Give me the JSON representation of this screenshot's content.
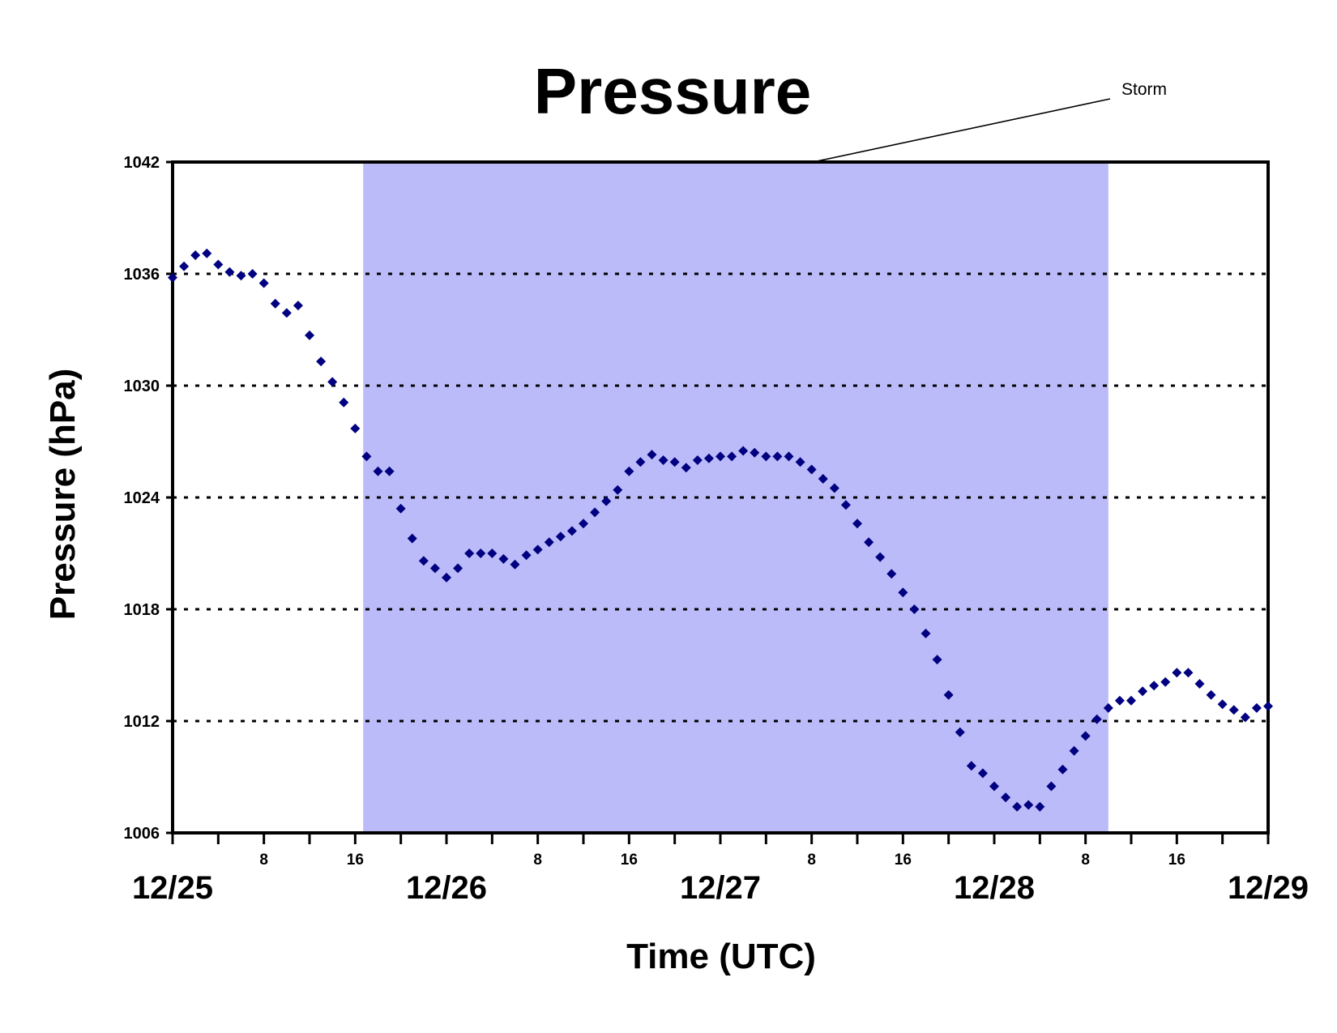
{
  "chart_data": {
    "type": "scatter",
    "title": "Pressure",
    "xlabel": "Time (UTC)",
    "ylabel": "Pressure (hPa)",
    "x_unit": "hours from 12/25 00 UTC",
    "xlim": [
      0,
      96
    ],
    "ylim": [
      1006,
      1042
    ],
    "y_ticks": [
      1006,
      1012,
      1018,
      1024,
      1030,
      1036,
      1042
    ],
    "date_ticks": [
      {
        "label": "12/25",
        "x": 0
      },
      {
        "label": "12/26",
        "x": 24
      },
      {
        "label": "12/27",
        "x": 48
      },
      {
        "label": "12/28",
        "x": 72
      },
      {
        "label": "12/29",
        "x": 96
      }
    ],
    "hour_ticks": [
      {
        "label": "8",
        "x": 8
      },
      {
        "label": "16",
        "x": 16
      },
      {
        "label": "8",
        "x": 32
      },
      {
        "label": "16",
        "x": 40
      },
      {
        "label": "8",
        "x": 56
      },
      {
        "label": "16",
        "x": 64
      },
      {
        "label": "8",
        "x": 80
      },
      {
        "label": "16",
        "x": 88
      }
    ],
    "minor_tick_hours": [
      0,
      4,
      8,
      12,
      16,
      20,
      24,
      28,
      32,
      36,
      40,
      44,
      48,
      52,
      56,
      60,
      64,
      68,
      72,
      76,
      80,
      84,
      88,
      92,
      96
    ],
    "gridlines": [
      1012,
      1018,
      1024,
      1030,
      1036
    ],
    "grid_style": "dotted",
    "shaded_region": {
      "x0": 16.7,
      "x1": 82,
      "label": "Storm",
      "color": "#bbbbfa"
    },
    "series": [
      {
        "color": "#000080",
        "marker": "diamond",
        "x": [
          0,
          1,
          2,
          3,
          4,
          5,
          6,
          7,
          8,
          9,
          10,
          11,
          12,
          13,
          14,
          15,
          16,
          17,
          18,
          19,
          20,
          21,
          22,
          23,
          24,
          25,
          26,
          27,
          28,
          29,
          30,
          31,
          32,
          33,
          34,
          35,
          36,
          37,
          38,
          39,
          40,
          41,
          42,
          43,
          44,
          45,
          46,
          47,
          48,
          49,
          50,
          51,
          52,
          53,
          54,
          55,
          56,
          57,
          58,
          59,
          60,
          61,
          62,
          63,
          64,
          65,
          66,
          67,
          68,
          69,
          70,
          71,
          72,
          73,
          74,
          75,
          76,
          77,
          78,
          79,
          80,
          81,
          82,
          83,
          84,
          85,
          86,
          87,
          88,
          89,
          90,
          91,
          92,
          93,
          94,
          95,
          96
        ],
        "y": [
          1035.8,
          1036.4,
          1037.0,
          1037.1,
          1036.5,
          1036.1,
          1035.9,
          1036.0,
          1035.5,
          1034.4,
          1033.9,
          1034.3,
          1032.7,
          1031.3,
          1030.2,
          1029.1,
          1027.7,
          1026.2,
          1025.4,
          1025.4,
          1023.4,
          1021.8,
          1020.6,
          1020.2,
          1019.7,
          1020.2,
          1021.0,
          1021.0,
          1021.0,
          1020.7,
          1020.4,
          1020.9,
          1021.2,
          1021.6,
          1021.9,
          1022.2,
          1022.6,
          1023.2,
          1023.8,
          1024.4,
          1025.4,
          1025.9,
          1026.3,
          1026.0,
          1025.9,
          1025.6,
          1026.0,
          1026.1,
          1026.2,
          1026.2,
          1026.5,
          1026.4,
          1026.2,
          1026.2,
          1026.2,
          1025.9,
          1025.5,
          1025.0,
          1024.5,
          1023.6,
          1022.6,
          1021.6,
          1020.8,
          1019.9,
          1018.9,
          1018.0,
          1016.7,
          1015.3,
          1013.4,
          1011.4,
          1009.6,
          1009.2,
          1008.5,
          1007.9,
          1007.4,
          1007.5,
          1007.4,
          1008.5,
          1009.4,
          1010.4,
          1011.2,
          1012.1,
          1012.7,
          1013.1,
          1013.1,
          1013.6,
          1013.9,
          1014.1,
          1014.6,
          1014.6,
          1014.0,
          1013.4,
          1012.9,
          1012.6,
          1012.2,
          1012.7,
          1012.8
        ]
      }
    ]
  }
}
